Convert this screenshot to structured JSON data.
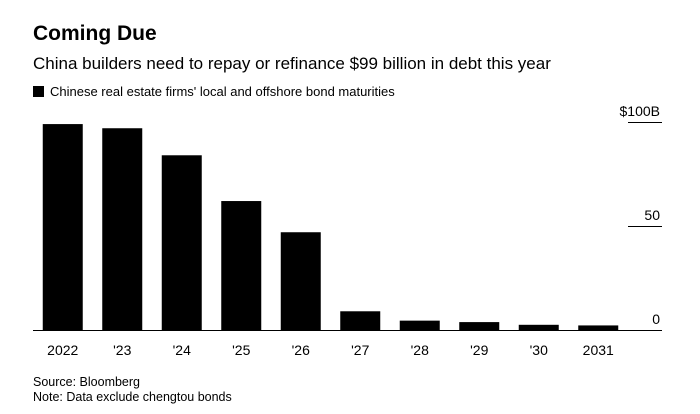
{
  "title": "Coming Due",
  "subtitle": "China builders need to repay or refinance $99 billion in debt this year",
  "legend_label": "Chinese real estate firms' local and offshore bond maturities",
  "source": "Source: Bloomberg",
  "note": "Note: Data exclude chengtou bonds",
  "colors": {
    "bar": "#000000",
    "gridline": "#000000"
  },
  "chart_data": {
    "type": "bar",
    "title": "Coming Due",
    "subtitle": "China builders need to repay or refinance $99 billion in debt this year",
    "xlabel": "",
    "ylabel": "",
    "categories": [
      "2022",
      "'23",
      "'24",
      "'25",
      "'26",
      "'27",
      "'28",
      "'29",
      "'30",
      "2031"
    ],
    "series": [
      {
        "name": "Chinese real estate firms' local and offshore bond maturities",
        "values": [
          99,
          97,
          84,
          62,
          47,
          9,
          4.5,
          3.8,
          2.5,
          2.2
        ]
      }
    ],
    "ylim": [
      0,
      100
    ],
    "y_ticks": [
      0,
      50,
      100
    ],
    "y_tick_labels": [
      "0",
      "50",
      "$100B"
    ],
    "y_axis_position": "right",
    "grid": false,
    "legend_position": "top-left"
  }
}
